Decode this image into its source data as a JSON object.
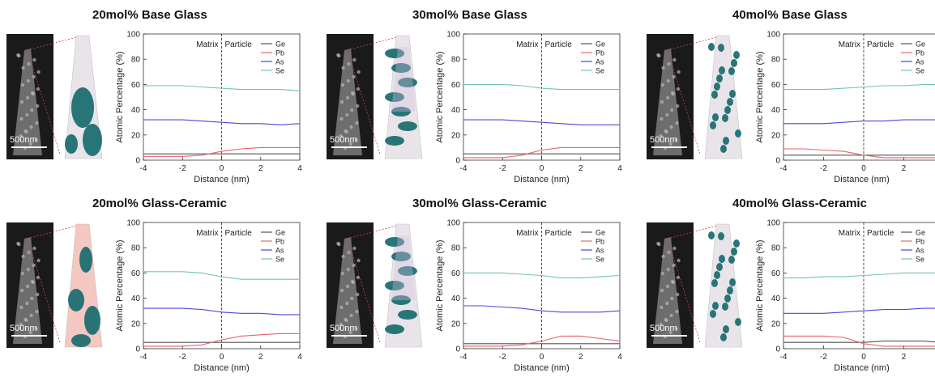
{
  "panels": [
    {
      "id": "20bg",
      "title": "20mol% Base Glass",
      "scale": "500nm",
      "tip": "green",
      "x_range": [
        -4,
        4
      ],
      "x_ticks": [
        -4,
        -2,
        0,
        2,
        4
      ]
    },
    {
      "id": "30bg",
      "title": "30mol% Base Glass",
      "scale": "500nm",
      "tip": "pink",
      "x_range": [
        -4,
        4
      ],
      "x_ticks": [
        -4,
        -2,
        0,
        2,
        4
      ]
    },
    {
      "id": "40bg",
      "title": "40mol% Base Glass",
      "scale": "500nm",
      "tip": "dots",
      "x_range": [
        -4,
        3.8
      ],
      "x_ticks": [
        -4,
        -2,
        0,
        2
      ]
    },
    {
      "id": "20gc",
      "title": "20mol% Glass-Ceramic",
      "scale": "500nm",
      "tip": "red",
      "x_range": [
        -4,
        4
      ],
      "x_ticks": [
        -4,
        -2,
        0,
        2,
        4
      ]
    },
    {
      "id": "30gc",
      "title": "30mol% Glass-Ceramic",
      "scale": "500nm",
      "tip": "pink2",
      "x_range": [
        -4,
        4
      ],
      "x_ticks": [
        -4,
        -2,
        0,
        2,
        4
      ]
    },
    {
      "id": "40gc",
      "title": "40mol% Glass-Ceramic",
      "scale": "500nm",
      "tip": "dots2",
      "x_range": [
        -4,
        3.8
      ],
      "x_ticks": [
        -4,
        -2,
        0,
        2
      ]
    }
  ],
  "chart_data": [
    {
      "type": "line",
      "title": "20mol% Base Glass",
      "xlabel": "Distance (nm)",
      "ylabel": "Atomic Percentage (%)",
      "ylim": [
        0,
        100
      ],
      "yticks": [
        0,
        20,
        40,
        60,
        80,
        100
      ],
      "annotations": [
        "Matrix",
        "Particle"
      ],
      "legend_position": "top-right",
      "x": [
        -4,
        -3,
        -2,
        -1,
        0,
        1,
        2,
        3,
        4
      ],
      "series": [
        {
          "name": "Ge",
          "values": [
            5,
            5,
            5,
            5,
            5,
            5,
            5,
            5,
            5
          ]
        },
        {
          "name": "Pb",
          "values": [
            3,
            3,
            3,
            4,
            7,
            9,
            10,
            10,
            10
          ]
        },
        {
          "name": "As",
          "values": [
            32,
            32,
            32,
            31,
            30,
            29,
            29,
            28,
            29
          ]
        },
        {
          "name": "Se",
          "values": [
            59,
            59,
            59,
            58,
            57,
            56,
            56,
            56,
            55
          ]
        }
      ]
    },
    {
      "type": "line",
      "title": "30mol% Base Glass",
      "xlabel": "Distance (nm)",
      "ylabel": "Atomic Percentage (%)",
      "ylim": [
        0,
        100
      ],
      "yticks": [
        0,
        20,
        40,
        60,
        80,
        100
      ],
      "annotations": [
        "Matrix",
        "Particle"
      ],
      "legend_position": "top-right",
      "x": [
        -4,
        -3,
        -2,
        -1,
        0,
        1,
        2,
        3,
        4
      ],
      "series": [
        {
          "name": "Ge",
          "values": [
            5,
            5,
            5,
            5,
            5,
            5,
            5,
            5,
            5
          ]
        },
        {
          "name": "Pb",
          "values": [
            2,
            2,
            2,
            4,
            8,
            10,
            10,
            10,
            10
          ]
        },
        {
          "name": "As",
          "values": [
            32,
            32,
            32,
            31,
            30,
            29,
            28,
            28,
            28
          ]
        },
        {
          "name": "Se",
          "values": [
            60,
            60,
            60,
            59,
            57,
            56,
            56,
            56,
            56
          ]
        }
      ]
    },
    {
      "type": "line",
      "title": "40mol% Base Glass",
      "xlabel": "Distance (nm)",
      "ylabel": "Atomic Percentage (%)",
      "ylim": [
        0,
        100
      ],
      "yticks": [
        0,
        20,
        40,
        60,
        80,
        100
      ],
      "annotations": [
        "Matrix",
        "Particle"
      ],
      "legend_position": "top-right",
      "x": [
        -4,
        -3,
        -2,
        -1,
        0,
        1,
        2,
        3,
        3.8
      ],
      "series": [
        {
          "name": "Ge",
          "values": [
            4,
            4,
            4,
            4,
            4,
            4,
            4,
            4,
            4
          ]
        },
        {
          "name": "Pb",
          "values": [
            9,
            9,
            8,
            7,
            4,
            2,
            2,
            2,
            2
          ]
        },
        {
          "name": "As",
          "values": [
            29,
            29,
            29,
            30,
            31,
            31,
            32,
            32,
            32
          ]
        },
        {
          "name": "Se",
          "values": [
            56,
            56,
            56,
            57,
            58,
            59,
            59,
            60,
            60
          ]
        }
      ]
    },
    {
      "type": "line",
      "title": "20mol% Glass-Ceramic",
      "xlabel": "Distance (nm)",
      "ylabel": "Atomic Percentage (%)",
      "ylim": [
        0,
        100
      ],
      "yticks": [
        0,
        20,
        40,
        60,
        80,
        100
      ],
      "annotations": [
        "Matrix",
        "Particle"
      ],
      "legend_position": "top-right",
      "x": [
        -4,
        -3,
        -2,
        -1,
        0,
        1,
        2,
        3,
        4
      ],
      "series": [
        {
          "name": "Ge",
          "values": [
            5,
            5,
            5,
            5,
            5,
            5,
            5,
            5,
            5
          ]
        },
        {
          "name": "Pb",
          "values": [
            2,
            2,
            2,
            3,
            7,
            10,
            11,
            12,
            12
          ]
        },
        {
          "name": "As",
          "values": [
            32,
            32,
            32,
            31,
            29,
            28,
            28,
            27,
            27
          ]
        },
        {
          "name": "Se",
          "values": [
            61,
            61,
            61,
            60,
            57,
            55,
            55,
            55,
            55
          ]
        }
      ]
    },
    {
      "type": "line",
      "title": "30mol% Glass-Ceramic",
      "xlabel": "Distance (nm)",
      "ylabel": "Atomic Percentage (%)",
      "ylim": [
        0,
        100
      ],
      "yticks": [
        0,
        20,
        40,
        60,
        80,
        100
      ],
      "annotations": [
        "Matrix",
        "Particle"
      ],
      "legend_position": "top-right",
      "x": [
        -4,
        -3,
        -2,
        -1,
        0,
        1,
        2,
        3,
        4
      ],
      "series": [
        {
          "name": "Ge",
          "values": [
            4,
            4,
            4,
            4,
            4,
            4,
            4,
            4,
            4
          ]
        },
        {
          "name": "Pb",
          "values": [
            2,
            2,
            2,
            3,
            6,
            10,
            10,
            8,
            6
          ]
        },
        {
          "name": "As",
          "values": [
            34,
            34,
            33,
            32,
            30,
            29,
            29,
            29,
            30
          ]
        },
        {
          "name": "Se",
          "values": [
            60,
            60,
            60,
            59,
            58,
            56,
            56,
            57,
            58
          ]
        }
      ]
    },
    {
      "type": "line",
      "title": "40mol% Glass-Ceramic",
      "xlabel": "Distance (nm)",
      "ylabel": "Atomic Percentage (%)",
      "ylim": [
        0,
        100
      ],
      "yticks": [
        0,
        20,
        40,
        60,
        80,
        100
      ],
      "annotations": [
        "Matrix",
        "Particle"
      ],
      "legend_position": "top-right",
      "x": [
        -4,
        -3,
        -2,
        -1,
        0,
        1,
        2,
        3,
        3.8
      ],
      "series": [
        {
          "name": "Ge",
          "values": [
            5,
            5,
            5,
            5,
            5,
            6,
            6,
            6,
            5
          ]
        },
        {
          "name": "Pb",
          "values": [
            10,
            10,
            10,
            9,
            4,
            2,
            2,
            2,
            2
          ]
        },
        {
          "name": "As",
          "values": [
            28,
            28,
            28,
            29,
            30,
            31,
            31,
            32,
            32
          ]
        },
        {
          "name": "Se",
          "values": [
            56,
            56,
            57,
            57,
            58,
            59,
            60,
            60,
            60
          ]
        }
      ]
    }
  ],
  "series_colors": {
    "Ge": "#555555",
    "Pb": "#e8606a",
    "As": "#4a4ad8",
    "Se": "#72c2bc"
  },
  "tip_colors": {
    "teal": "#1d6f72",
    "light": "#e9e4ea",
    "red": "#e86a5e",
    "pink": "#d8c0de"
  }
}
